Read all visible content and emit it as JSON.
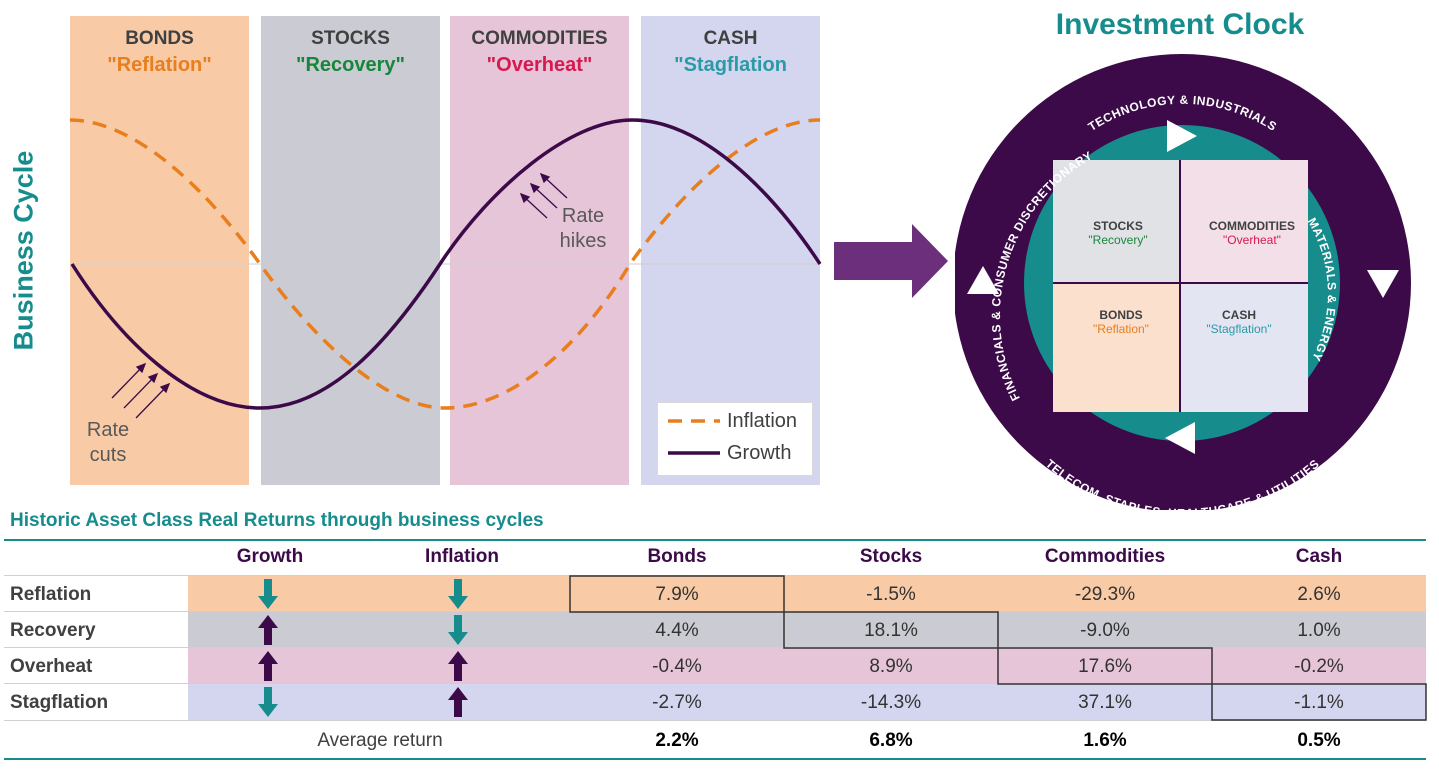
{
  "business_cycle": {
    "title": "Business Cycle",
    "phases": [
      {
        "name": "BONDS",
        "sub": "\"Reflation\"",
        "bg": "#f8cba6",
        "sub_color": "#e87e1e"
      },
      {
        "name": "STOCKS",
        "sub": "\"Recovery\"",
        "bg": "#cbcbd3",
        "sub_color": "#16873a"
      },
      {
        "name": "COMMODITIES",
        "sub": "\"Overheat\"",
        "bg": "#e6c5d8",
        "sub_color": "#d6194f"
      },
      {
        "name": "CASH",
        "sub": "\"Stagflation",
        "bg": "#d3d6ee",
        "sub_color": "#2a9aa6"
      }
    ],
    "annotations": {
      "rate_hikes": "Rate hikes",
      "rate_cuts": "Rate cuts"
    },
    "legend": {
      "inflation": "Inflation",
      "growth": "Growth"
    },
    "colors": {
      "inflation": "#e87e1e",
      "growth": "#3c0a49",
      "arrow": "#6b2f7c"
    }
  },
  "investment_clock": {
    "title": "Investment Clock",
    "outer_labels": {
      "top": "TECHNOLOGY & INDUSTRIALS",
      "right": "MATERIALS & ENERGY",
      "bottom": "TELECOM, STAPLES, HEALTHCARE & UTILITIES",
      "left": "FINANCIALS & CONSUMER DISCRETIONARY"
    },
    "quadrants": {
      "stocks": {
        "name": "STOCKS",
        "sub": "\"Recovery\""
      },
      "commodities": {
        "name": "COMMODITIES",
        "sub": "\"Overheat\""
      },
      "bonds": {
        "name": "BONDS",
        "sub": "\"Reflation\""
      },
      "cash": {
        "name": "CASH",
        "sub": "\"Stagflation\""
      }
    },
    "colors": {
      "outer": "#3c0a49",
      "ring": "#168c8c"
    }
  },
  "returns_table": {
    "title": "Historic Asset Class Real Returns through business cycles",
    "headers": [
      "Growth",
      "Inflation",
      "Bonds",
      "Stocks",
      "Commodities",
      "Cash"
    ],
    "rows": [
      {
        "label": "Reflation",
        "growth": "down",
        "inflation": "down",
        "values": [
          "7.9%",
          "-1.5%",
          "-29.3%",
          "2.6%"
        ]
      },
      {
        "label": "Recovery",
        "growth": "up",
        "inflation": "down",
        "values": [
          "4.4%",
          "18.1%",
          "-9.0%",
          "1.0%"
        ]
      },
      {
        "label": "Overheat",
        "growth": "up",
        "inflation": "up",
        "values": [
          "-0.4%",
          "8.9%",
          "17.6%",
          "-0.2%"
        ]
      },
      {
        "label": "Stagflation",
        "growth": "down",
        "inflation": "up",
        "values": [
          "-2.7%",
          "-14.3%",
          "37.1%",
          "-1.1%"
        ]
      }
    ],
    "average_label": "Average return",
    "averages": [
      "2.2%",
      "6.8%",
      "1.6%",
      "0.5%"
    ],
    "colors": {
      "up": "#3c0a49",
      "down": "#168c8c"
    }
  }
}
